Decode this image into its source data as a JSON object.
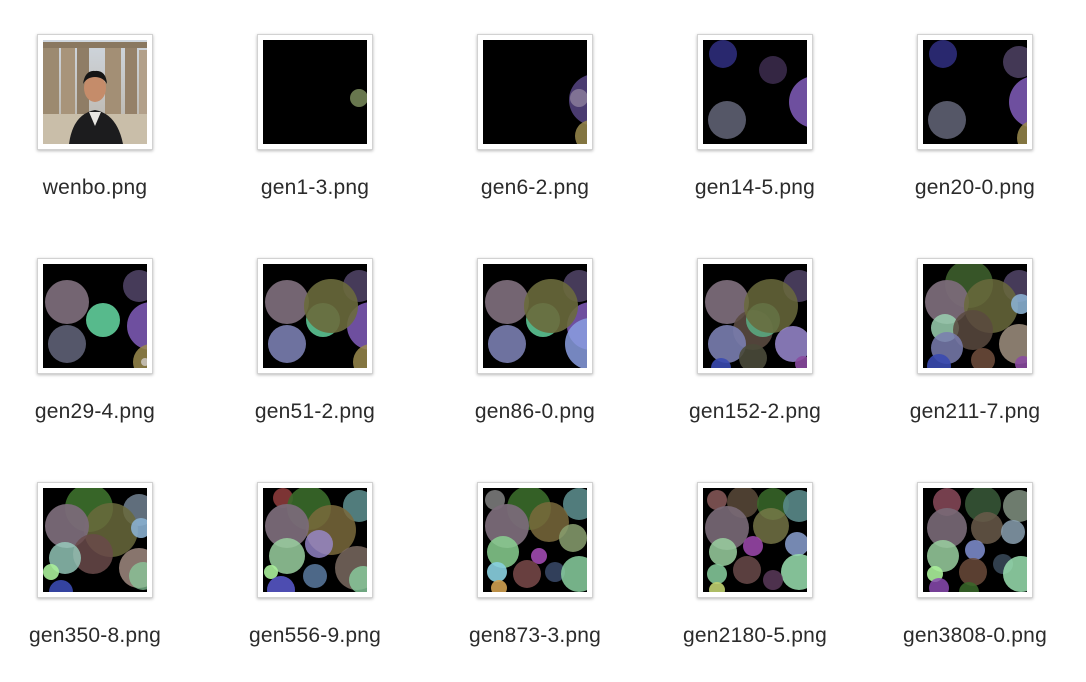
{
  "files": [
    {
      "name": "wenbo.png",
      "thumbnail": "photo"
    },
    {
      "name": "gen1-3.png",
      "thumbnail": "circles"
    },
    {
      "name": "gen6-2.png",
      "thumbnail": "circles"
    },
    {
      "name": "gen14-5.png",
      "thumbnail": "circles"
    },
    {
      "name": "gen20-0.png",
      "thumbnail": "circles"
    },
    {
      "name": "gen29-4.png",
      "thumbnail": "circles"
    },
    {
      "name": "gen51-2.png",
      "thumbnail": "circles"
    },
    {
      "name": "gen86-0.png",
      "thumbnail": "circles"
    },
    {
      "name": "gen152-2.png",
      "thumbnail": "circles"
    },
    {
      "name": "gen211-7.png",
      "thumbnail": "circles"
    },
    {
      "name": "gen350-8.png",
      "thumbnail": "circles"
    },
    {
      "name": "gen556-9.png",
      "thumbnail": "circles"
    },
    {
      "name": "gen873-3.png",
      "thumbnail": "circles"
    },
    {
      "name": "gen2180-5.png",
      "thumbnail": "circles"
    },
    {
      "name": "gen3808-0.png",
      "thumbnail": "circles"
    }
  ],
  "colors": {
    "thumbnail_background": "#000000",
    "label_text": "#2b2b2b"
  }
}
